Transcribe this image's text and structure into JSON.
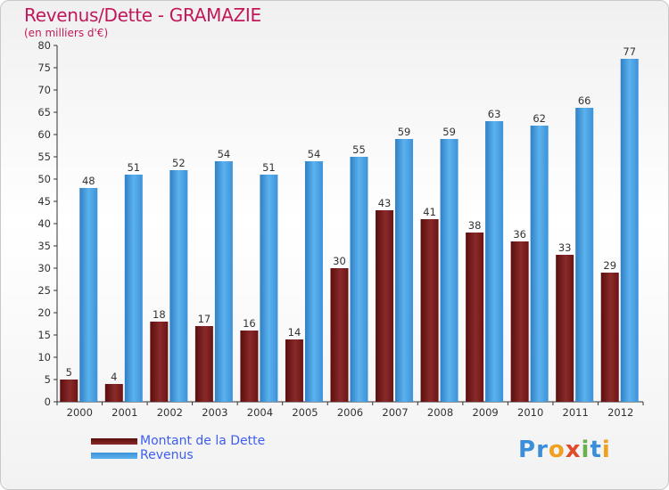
{
  "chart_data": {
    "type": "bar",
    "title": "Revenus/Dette - GRAMAZIE",
    "subtitle": "(en milliers d'€)",
    "categories": [
      "2000",
      "2001",
      "2002",
      "2003",
      "2004",
      "2005",
      "2006",
      "2007",
      "2008",
      "2009",
      "2010",
      "2011",
      "2012"
    ],
    "series": [
      {
        "name": "Montant de la Dette",
        "color": "#7b1f1f",
        "values": [
          5,
          4,
          18,
          17,
          16,
          14,
          30,
          43,
          41,
          38,
          36,
          33,
          29
        ]
      },
      {
        "name": "Revenus",
        "color": "#4ea6e6",
        "values": [
          48,
          51,
          52,
          54,
          51,
          54,
          55,
          59,
          59,
          63,
          62,
          66,
          77
        ]
      }
    ],
    "ylim": [
      0,
      80
    ],
    "yticks": [
      0,
      5,
      10,
      15,
      20,
      25,
      30,
      35,
      40,
      45,
      50,
      55,
      60,
      65,
      70,
      75,
      80
    ],
    "grid": false,
    "legend": "bottom-left"
  },
  "logo": {
    "text": "Proxiti",
    "letters": [
      {
        "ch": "P",
        "color": "#3a8fd8"
      },
      {
        "ch": "r",
        "color": "#3a8fd8"
      },
      {
        "ch": "o",
        "color": "#f0a020"
      },
      {
        "ch": "x",
        "color": "#e04b2a"
      },
      {
        "ch": "i",
        "color": "#6ab04c"
      },
      {
        "ch": "t",
        "color": "#3a8fd8"
      },
      {
        "ch": "i",
        "color": "#f0a020"
      }
    ]
  }
}
